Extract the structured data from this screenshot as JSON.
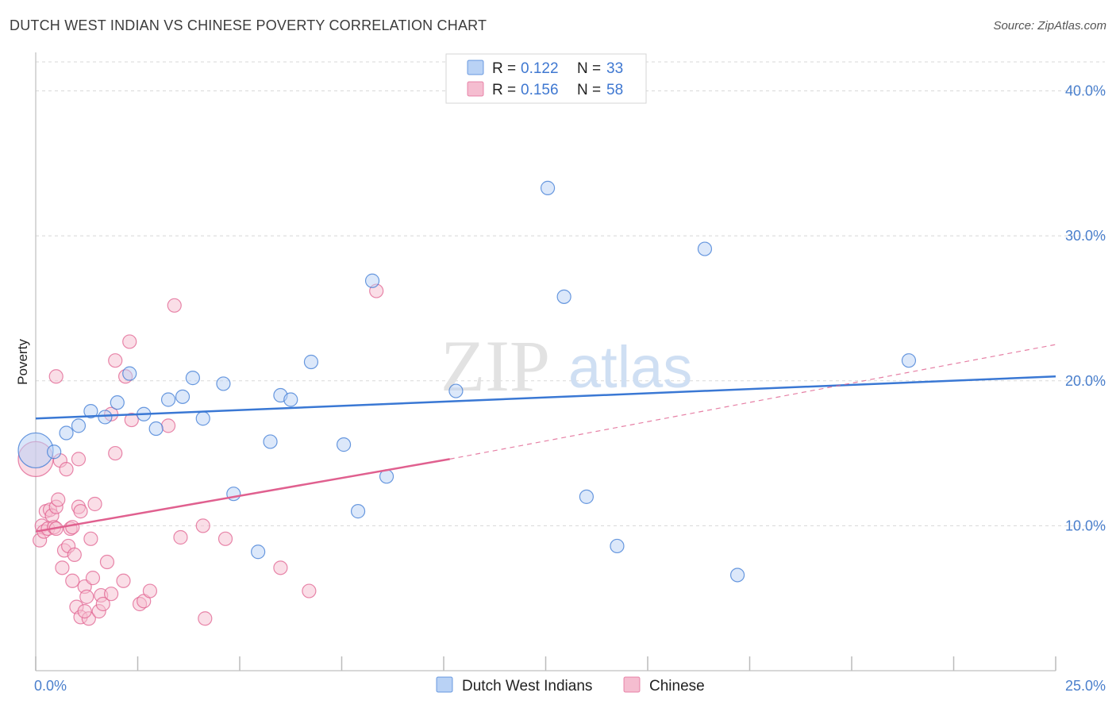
{
  "title": "DUTCH WEST INDIAN VS CHINESE POVERTY CORRELATION CHART",
  "source": "Source: ZipAtlas.com",
  "colors": {
    "blue": "#3a78d4",
    "blue_fill": "#b9d2f5",
    "pink": "#e0608f",
    "pink_fill": "#f5bdd0",
    "grid": "#d8d8d8",
    "tick_text": "#4a7fcc"
  },
  "watermark": {
    "zip": "ZIP",
    "atlas": "atlas"
  },
  "legend": {
    "r_label": "R =",
    "n_label": "N =",
    "rows": [
      {
        "series": "Dutch West Indians",
        "r": "0.122",
        "n": "33"
      },
      {
        "series": "Chinese",
        "r": "0.156",
        "n": "58"
      }
    ]
  },
  "chart_data": {
    "type": "scatter",
    "title": "DUTCH WEST INDIAN VS CHINESE POVERTY CORRELATION CHART",
    "xlabel": "",
    "ylabel": "Poverty",
    "xlim": [
      0,
      25
    ],
    "ylim": [
      0,
      42
    ],
    "x_tick_labels": [
      "0.0%",
      "25.0%"
    ],
    "y_ticks": [
      10,
      20,
      30,
      40
    ],
    "y_tick_labels": [
      "10.0%",
      "20.0%",
      "30.0%",
      "40.0%"
    ],
    "grid": true,
    "legend_position": "top-center",
    "series": [
      {
        "name": "Dutch West Indians",
        "color": "#3a78d4",
        "r": 0.122,
        "n": 33,
        "trend": {
          "x": [
            0,
            25
          ],
          "y": [
            17.4,
            20.3
          ],
          "dashed_x": null
        },
        "points": [
          {
            "x": 0.0,
            "y": 15.2,
            "big": true
          },
          {
            "x": 0.45,
            "y": 15.1
          },
          {
            "x": 0.75,
            "y": 16.4
          },
          {
            "x": 1.05,
            "y": 16.9
          },
          {
            "x": 1.35,
            "y": 17.9
          },
          {
            "x": 1.7,
            "y": 17.5
          },
          {
            "x": 2.0,
            "y": 18.5
          },
          {
            "x": 2.3,
            "y": 20.5
          },
          {
            "x": 2.65,
            "y": 17.7
          },
          {
            "x": 2.95,
            "y": 16.7
          },
          {
            "x": 3.25,
            "y": 18.7
          },
          {
            "x": 3.6,
            "y": 18.9
          },
          {
            "x": 3.85,
            "y": 20.2
          },
          {
            "x": 4.1,
            "y": 17.4
          },
          {
            "x": 4.6,
            "y": 19.8
          },
          {
            "x": 4.85,
            "y": 12.2
          },
          {
            "x": 5.45,
            "y": 8.2
          },
          {
            "x": 5.75,
            "y": 15.8
          },
          {
            "x": 6.0,
            "y": 19.0
          },
          {
            "x": 6.25,
            "y": 18.7
          },
          {
            "x": 6.75,
            "y": 21.3
          },
          {
            "x": 7.55,
            "y": 15.6
          },
          {
            "x": 7.9,
            "y": 11.0
          },
          {
            "x": 8.25,
            "y": 26.9
          },
          {
            "x": 8.6,
            "y": 13.4
          },
          {
            "x": 10.3,
            "y": 19.3
          },
          {
            "x": 12.55,
            "y": 33.3
          },
          {
            "x": 12.95,
            "y": 25.8
          },
          {
            "x": 13.5,
            "y": 12.0
          },
          {
            "x": 14.25,
            "y": 8.6
          },
          {
            "x": 16.4,
            "y": 29.1
          },
          {
            "x": 17.2,
            "y": 6.6
          },
          {
            "x": 21.4,
            "y": 21.4
          }
        ]
      },
      {
        "name": "Chinese",
        "color": "#e0608f",
        "r": 0.156,
        "n": 58,
        "trend": {
          "x": [
            0,
            10.15
          ],
          "y": [
            9.6,
            14.6
          ],
          "dashed_x": [
            10.15,
            25
          ],
          "dashed_y": [
            14.6,
            22.5
          ]
        },
        "points": [
          {
            "x": 0.0,
            "y": 14.6,
            "big": true
          },
          {
            "x": 0.1,
            "y": 9.0
          },
          {
            "x": 0.15,
            "y": 10.0
          },
          {
            "x": 0.2,
            "y": 9.6
          },
          {
            "x": 0.25,
            "y": 11.0
          },
          {
            "x": 0.3,
            "y": 9.8
          },
          {
            "x": 0.35,
            "y": 11.1
          },
          {
            "x": 0.4,
            "y": 10.7
          },
          {
            "x": 0.45,
            "y": 9.9
          },
          {
            "x": 0.5,
            "y": 11.3
          },
          {
            "x": 0.5,
            "y": 20.3
          },
          {
            "x": 0.55,
            "y": 11.8
          },
          {
            "x": 0.6,
            "y": 14.5
          },
          {
            "x": 0.65,
            "y": 7.1
          },
          {
            "x": 0.7,
            "y": 8.3
          },
          {
            "x": 0.75,
            "y": 13.9
          },
          {
            "x": 0.8,
            "y": 8.6
          },
          {
            "x": 0.85,
            "y": 9.8
          },
          {
            "x": 0.9,
            "y": 6.2
          },
          {
            "x": 0.9,
            "y": 9.9
          },
          {
            "x": 0.95,
            "y": 8.0
          },
          {
            "x": 1.0,
            "y": 4.4
          },
          {
            "x": 1.05,
            "y": 11.3
          },
          {
            "x": 1.05,
            "y": 14.6
          },
          {
            "x": 1.1,
            "y": 11.0
          },
          {
            "x": 1.1,
            "y": 3.7
          },
          {
            "x": 1.2,
            "y": 5.8
          },
          {
            "x": 1.25,
            "y": 5.1
          },
          {
            "x": 1.3,
            "y": 3.6
          },
          {
            "x": 1.35,
            "y": 9.1
          },
          {
            "x": 1.4,
            "y": 6.4
          },
          {
            "x": 1.45,
            "y": 11.5
          },
          {
            "x": 1.55,
            "y": 4.1
          },
          {
            "x": 1.6,
            "y": 5.2
          },
          {
            "x": 1.65,
            "y": 4.6
          },
          {
            "x": 1.75,
            "y": 7.5
          },
          {
            "x": 1.85,
            "y": 5.3
          },
          {
            "x": 1.85,
            "y": 17.7
          },
          {
            "x": 1.95,
            "y": 21.4
          },
          {
            "x": 1.95,
            "y": 15.0
          },
          {
            "x": 2.15,
            "y": 6.2
          },
          {
            "x": 2.2,
            "y": 20.3
          },
          {
            "x": 2.3,
            "y": 22.7
          },
          {
            "x": 2.35,
            "y": 17.3
          },
          {
            "x": 2.55,
            "y": 4.6
          },
          {
            "x": 2.65,
            "y": 4.8
          },
          {
            "x": 2.8,
            "y": 5.5
          },
          {
            "x": 3.25,
            "y": 16.9
          },
          {
            "x": 3.4,
            "y": 25.2
          },
          {
            "x": 3.55,
            "y": 9.2
          },
          {
            "x": 4.1,
            "y": 10.0
          },
          {
            "x": 4.15,
            "y": 3.6
          },
          {
            "x": 4.65,
            "y": 9.1
          },
          {
            "x": 6.0,
            "y": 7.1
          },
          {
            "x": 6.7,
            "y": 5.5
          },
          {
            "x": 8.35,
            "y": 26.2
          },
          {
            "x": 0.5,
            "y": 9.8
          },
          {
            "x": 1.2,
            "y": 4.1
          }
        ]
      }
    ]
  }
}
